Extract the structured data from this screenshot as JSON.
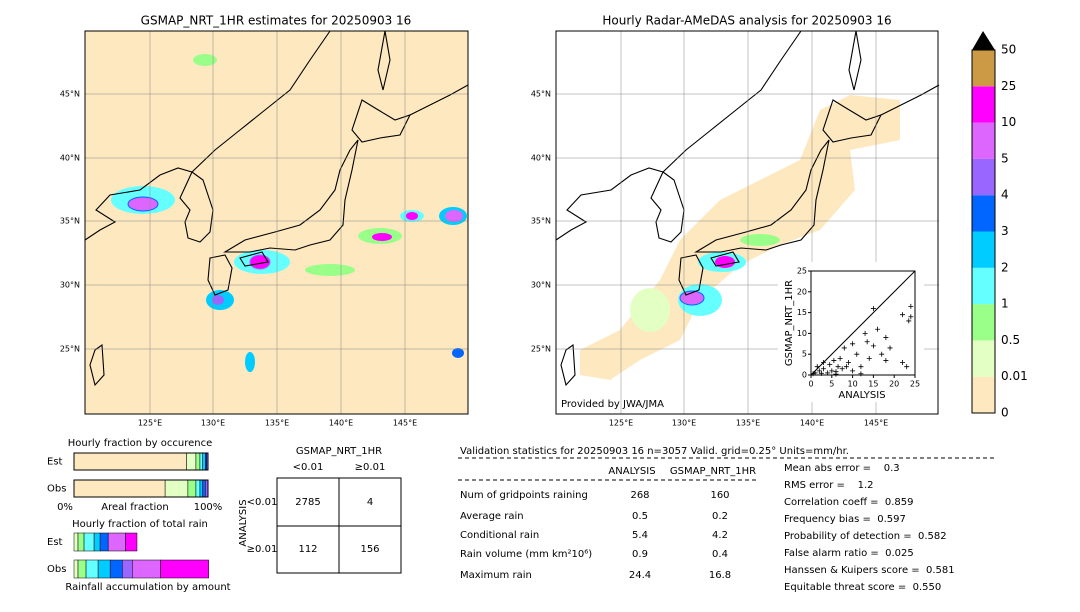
{
  "left_map": {
    "title": "GSMAP_NRT_1HR estimates for 20250903 16",
    "lat_labels": [
      "45°N",
      "40°N",
      "35°N",
      "30°N",
      "25°N"
    ],
    "lon_labels": [
      "125°E",
      "130°E",
      "135°E",
      "140°E",
      "145°E"
    ]
  },
  "right_map": {
    "title": "Hourly Radar-AMeDAS analysis for 20250903 16",
    "lat_labels": [
      "45°N",
      "40°N",
      "35°N",
      "30°N",
      "25°N"
    ],
    "lon_labels": [
      "125°E",
      "130°E",
      "135°E",
      "140°E",
      "145°E"
    ],
    "credit": "Provided by JWA/JMA"
  },
  "colorbar": {
    "levels": [
      "0",
      "0.01",
      "0.5",
      "1",
      "2",
      "3",
      "4",
      "5",
      "10",
      "25",
      "50"
    ],
    "colors": [
      "#fde8c0",
      "#e4ffc4",
      "#99ff88",
      "#66ffff",
      "#00ccff",
      "#0066ff",
      "#9966ff",
      "#dd66ff",
      "#ff00ff",
      "#cc9944"
    ]
  },
  "scatter": {
    "xlabel": "ANALYSIS",
    "ylabel": "GSMAP_NRT_1HR",
    "lim": [
      0,
      25
    ],
    "ticks": [
      0,
      5,
      10,
      15,
      20,
      25
    ],
    "x": [
      0.5,
      1,
      1.5,
      2,
      2.5,
      3,
      3,
      4,
      4.5,
      5,
      5.5,
      6,
      6.5,
      7,
      7.5,
      8,
      8.5,
      9,
      10,
      10,
      11,
      12,
      13,
      13.5,
      14,
      15,
      15,
      16,
      17,
      18,
      18,
      19,
      22,
      22,
      23,
      23.5,
      24,
      24,
      12,
      6
    ],
    "y": [
      0.3,
      0.5,
      2,
      1,
      0.4,
      3,
      1.5,
      0.5,
      2.5,
      1,
      3.5,
      0.8,
      2,
      4,
      1.5,
      6.5,
      2,
      3,
      1,
      7.5,
      5,
      2,
      10,
      8,
      4,
      16,
      7,
      11,
      5,
      9,
      3.5,
      6.5,
      14.5,
      3,
      2,
      13,
      16.5,
      14,
      0.3,
      0.2
    ]
  },
  "occurrence": {
    "title": "Hourly fraction by occurence",
    "rows": [
      "Est",
      "Obs"
    ],
    "axis_labels": [
      "0%",
      "Areal fraction",
      "100%"
    ],
    "fractions": [
      [
        0.84,
        0.07,
        0.03,
        0.02,
        0.02,
        0.01,
        0.01
      ],
      [
        0.68,
        0.17,
        0.06,
        0.03,
        0.02,
        0.02,
        0.02
      ]
    ]
  },
  "total_rain": {
    "title": "Hourly fraction of total rain",
    "rows": [
      "Est",
      "Obs"
    ],
    "footer": "Rainfall accumulation by amount",
    "fractions": [
      [
        0.03,
        0.045,
        0.075,
        0.045,
        0.06,
        0.0,
        0.13,
        0.085
      ],
      [
        0.03,
        0.06,
        0.09,
        0.09,
        0.09,
        0.075,
        0.21,
        0.36
      ]
    ]
  },
  "contingency": {
    "title": "GSMAP_NRT_1HR",
    "columns": [
      "<0.01",
      "≥0.01"
    ],
    "axis": "ANALYSIS",
    "rows": [
      "<0.01",
      "≥0.01"
    ],
    "cells": [
      [
        "2785",
        "4"
      ],
      [
        "112",
        "156"
      ]
    ]
  },
  "validation": {
    "header": "Validation statistics for 20250903 16  n=3057 Valid. grid=0.25° Units=mm/hr.",
    "columns": [
      "ANALYSIS",
      "GSMAP_NRT_1HR"
    ],
    "rows": [
      [
        "Num of gridpoints raining",
        "268",
        "160"
      ],
      [
        "Average rain",
        "0.5",
        "0.2"
      ],
      [
        "Conditional rain",
        "5.4",
        "4.2"
      ],
      [
        "Rain volume (mm km²10⁶)",
        "0.9",
        "0.4"
      ],
      [
        "Maximum rain",
        "24.4",
        "16.8"
      ]
    ],
    "scores": [
      "Mean abs error =    0.3",
      "RMS error =    1.2",
      "Correlation coeff =  0.859",
      "Frequency bias =  0.597",
      "Probability of detection =  0.582",
      "False alarm ratio =  0.025",
      "Hanssen & Kuipers score =  0.581",
      "Equitable threat score =  0.550"
    ]
  }
}
